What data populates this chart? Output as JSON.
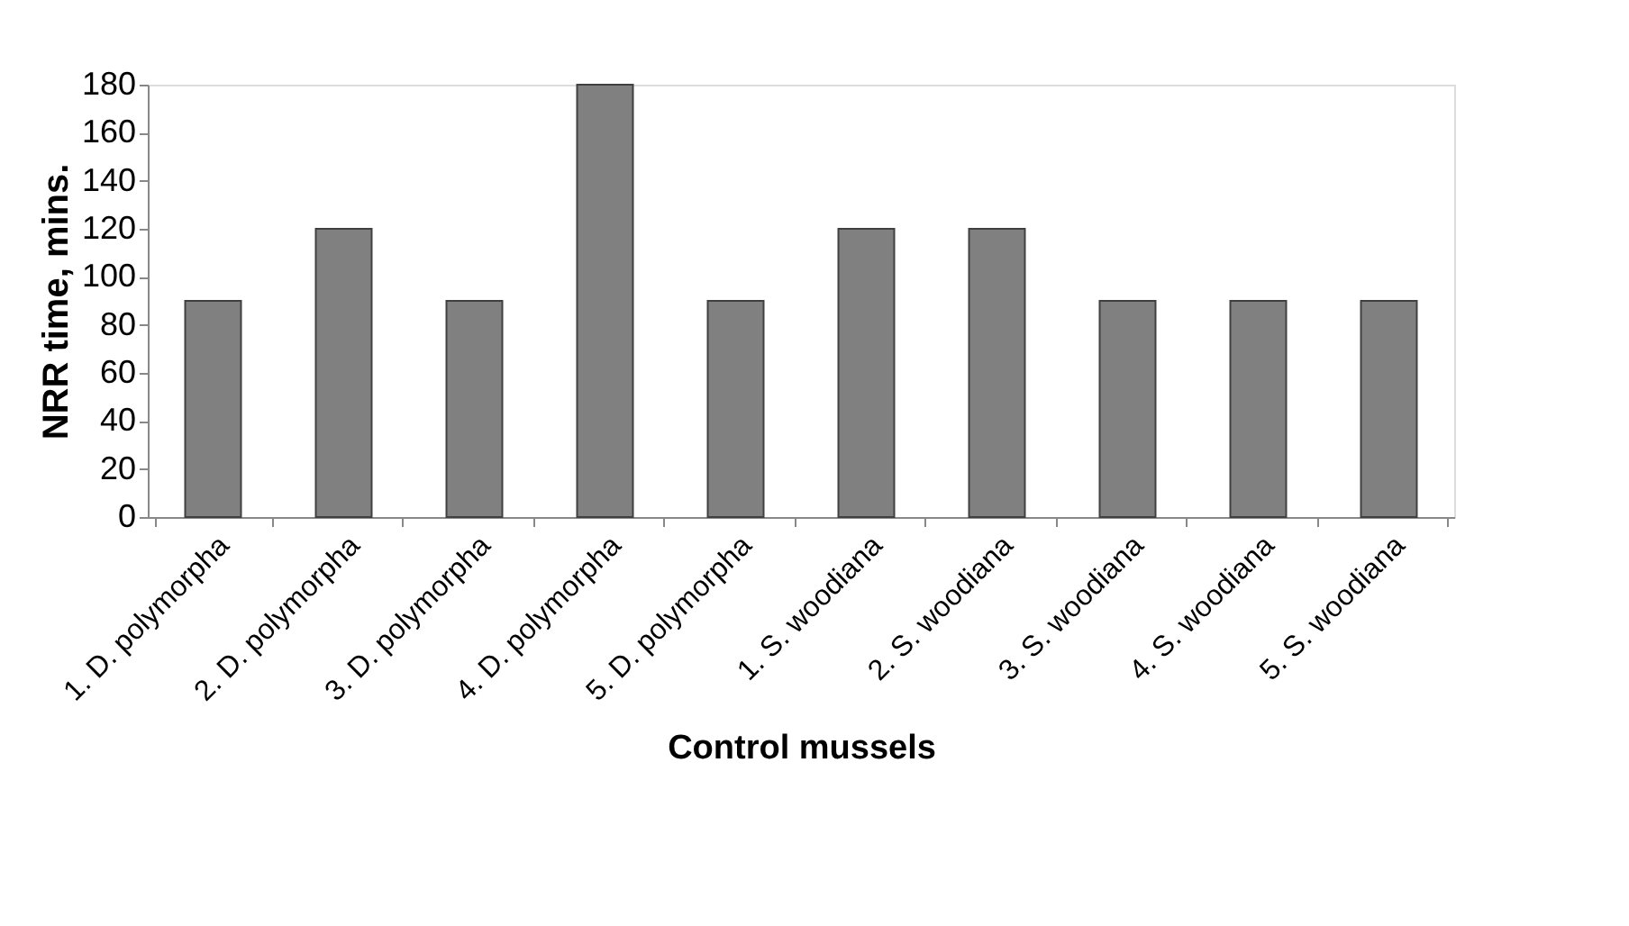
{
  "chart_data": {
    "type": "bar",
    "xlabel": "Control mussels",
    "ylabel": "NRR time, mins.",
    "categories": [
      "1. D. polymorpha",
      "2. D. polymorpha",
      "3. D. polymorpha",
      "4. D. polymorpha",
      "5. D. polymorpha",
      "1. S. woodiana",
      "2. S. woodiana",
      "3. S. woodiana",
      "4. S. woodiana",
      "5. S. woodiana"
    ],
    "values": [
      90,
      120,
      90,
      180,
      90,
      120,
      120,
      90,
      90,
      90
    ],
    "color": "#808080",
    "ylim": [
      0,
      180
    ],
    "yticks": [
      0,
      20,
      40,
      60,
      80,
      100,
      120,
      140,
      160,
      180
    ],
    "grid": false
  }
}
